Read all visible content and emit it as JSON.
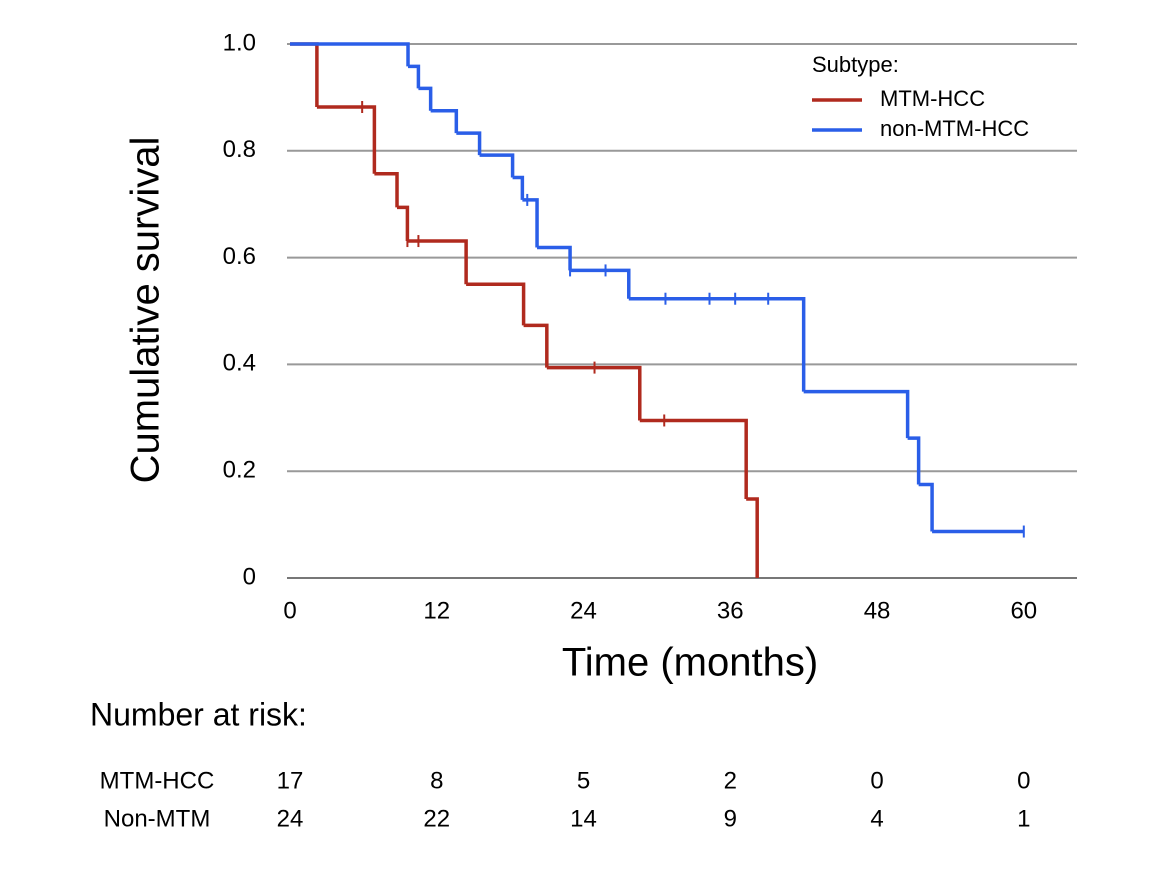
{
  "chart_data": {
    "type": "survival",
    "xlabel": "Time (months)",
    "ylabel": "Cumulative survival",
    "xlim": [
      0,
      64.4
    ],
    "ylim": [
      0,
      1
    ],
    "xticks": [
      0,
      12,
      24,
      36,
      48,
      60
    ],
    "yticks": [
      0,
      0.2,
      0.4,
      0.6,
      0.8,
      {
        "value": 1,
        "label": "1.0"
      }
    ],
    "grid": true,
    "legend_title": "Subtype:",
    "legend_position": "upper-right",
    "series": [
      {
        "name": "MTM-HCC",
        "color": "#b02a1e",
        "times": [
          0,
          2.2,
          6.9,
          8.75,
          9.6,
          14.4,
          19.1,
          21.0,
          28.6,
          37.3,
          38.2
        ],
        "values": [
          1,
          0.882,
          0.757,
          0.694,
          0.631,
          0.55,
          0.473,
          0.394,
          0.295,
          0.148,
          0
        ],
        "censor_times": [
          5.9,
          9.6,
          10.5,
          24.9,
          30.6
        ]
      },
      {
        "name": "non-MTM-HCC",
        "color": "#2a5ee8",
        "times": [
          0,
          9.65,
          10.5,
          11.5,
          13.6,
          15.5,
          18.2,
          19.0,
          20.2,
          22.9,
          27.7,
          42.0,
          50.5,
          51.4,
          52.5
        ],
        "values": [
          1,
          0.958,
          0.917,
          0.875,
          0.833,
          0.792,
          0.75,
          0.708,
          0.619,
          0.576,
          0.523,
          0.349,
          0.262,
          0.175,
          0.087
        ],
        "censor_times": [
          19.4,
          22.9,
          25.8,
          30.7,
          34.3,
          36.4,
          39.1,
          60
        ]
      }
    ],
    "risk_table": {
      "title": "Number at risk:",
      "rows": [
        {
          "label": "MTM-HCC",
          "counts": [
            17,
            8,
            5,
            2,
            0,
            0
          ]
        },
        {
          "label": "Non-MTM",
          "counts": [
            24,
            22,
            14,
            9,
            4,
            1
          ]
        }
      ]
    }
  }
}
